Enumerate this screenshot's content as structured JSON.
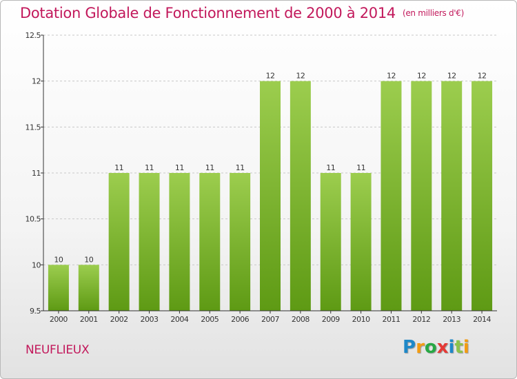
{
  "header": {
    "title": "Dotation Globale de Fonctionnement de 2000 à 2014",
    "unit": "(en milliers d'€)"
  },
  "footer": {
    "commune": "NEUFLIEUX",
    "logo_letters": [
      "P",
      "r",
      "o",
      "x",
      "i",
      "t",
      "i"
    ]
  },
  "colors": {
    "title": "#c2185b",
    "bar_top": "#9ccd4e",
    "bar_bottom": "#5e9a14",
    "axis": "#333333",
    "grid": "#c8c8c8"
  },
  "chart_data": {
    "type": "bar",
    "title": "Dotation Globale de Fonctionnement de 2000 à 2014",
    "xlabel": "",
    "ylabel": "",
    "ylim": [
      9.5,
      12.5
    ],
    "yticks": [
      "9.5",
      "10",
      "10.5",
      "11",
      "11.5",
      "12",
      "12.5"
    ],
    "grid": true,
    "categories": [
      "2000",
      "2001",
      "2002",
      "2003",
      "2004",
      "2005",
      "2006",
      "2007",
      "2008",
      "2009",
      "2010",
      "2011",
      "2012",
      "2013",
      "2014"
    ],
    "values": [
      10,
      10,
      11,
      11,
      11,
      11,
      11,
      12,
      12,
      11,
      11,
      12,
      12,
      12,
      12
    ],
    "labels": [
      "10",
      "10",
      "11",
      "11",
      "11",
      "11",
      "11",
      "12",
      "12",
      "11",
      "11",
      "12",
      "12",
      "12",
      "12"
    ]
  }
}
